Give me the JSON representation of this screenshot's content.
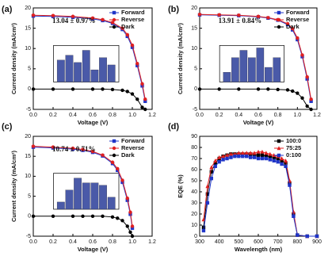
{
  "chart_data": [
    {
      "type": "line",
      "panel": "(a)",
      "annotation": "13.04 ± 0.97%",
      "x_label": "Voltage (V)",
      "y_label": "Current density (mA/cm²)",
      "x": [
        0,
        0.2,
        0.4,
        0.6,
        0.7,
        0.8,
        0.9,
        0.95,
        1.0,
        1.05,
        1.1,
        1.13
      ],
      "series": [
        {
          "name": "Forward",
          "color": "#1f35c8",
          "marker": "square",
          "values": [
            18.0,
            17.9,
            17.7,
            17.3,
            16.9,
            16.2,
            14.7,
            13.0,
            10.3,
            5.8,
            0.8,
            -3
          ]
        },
        {
          "name": "Reverse",
          "color": "#e02020",
          "marker": "circle",
          "values": [
            18.2,
            18.1,
            17.9,
            17.5,
            17.1,
            16.4,
            15.0,
            13.4,
            10.8,
            6.3,
            1.3,
            -2.5
          ]
        },
        {
          "name": "Dark",
          "color": "#000000",
          "marker": "circle",
          "values": [
            0,
            0,
            0,
            0,
            0,
            -0.1,
            -0.3,
            -0.6,
            -1.2,
            -2.5,
            -4.5,
            -5
          ]
        }
      ],
      "xlim": [
        0,
        1.2
      ],
      "xticks": [
        {
          "value": 0,
          "label": "0.0"
        },
        {
          "value": 0.2,
          "label": "0.2"
        },
        {
          "value": 0.4,
          "label": "0.4"
        },
        {
          "value": 0.6,
          "label": "0.6"
        },
        {
          "value": 0.8,
          "label": "0.8"
        },
        {
          "value": 1.0,
          "label": "1.0"
        },
        {
          "value": 1.2,
          "label": "1.2"
        }
      ],
      "ylim": [
        -5,
        20
      ],
      "yticks": [
        -5,
        0,
        5,
        10,
        15,
        20
      ],
      "inset": {
        "values": [
          9,
          11,
          8,
          13,
          5,
          10,
          7
        ],
        "color": "#4a5aa8",
        "ylim": [
          0,
          15
        ]
      }
    },
    {
      "type": "line",
      "panel": "(b)",
      "annotation": "13.91 ± 0.84%",
      "x_label": "Voltage (V)",
      "y_label": "Current density (mA/cm²)",
      "x": [
        0,
        0.2,
        0.4,
        0.6,
        0.7,
        0.8,
        0.9,
        0.95,
        1.0,
        1.05,
        1.1,
        1.14
      ],
      "series": [
        {
          "name": "Forward",
          "color": "#1f35c8",
          "marker": "square",
          "values": [
            18.3,
            18.2,
            18.1,
            17.8,
            17.5,
            17.0,
            15.9,
            14.6,
            12.2,
            8.0,
            2.5,
            -3
          ]
        },
        {
          "name": "Reverse",
          "color": "#e02020",
          "marker": "circle",
          "values": [
            18.4,
            18.3,
            18.2,
            17.9,
            17.6,
            17.1,
            16.1,
            14.9,
            12.6,
            8.4,
            3.0,
            -2.5
          ]
        },
        {
          "name": "Dark",
          "color": "#000000",
          "marker": "circle",
          "values": [
            0,
            0,
            0,
            0,
            0,
            -0.1,
            -0.2,
            -0.5,
            -1.0,
            -2.2,
            -4.2,
            -5
          ]
        }
      ],
      "xlim": [
        0,
        1.2
      ],
      "xticks": [
        {
          "value": 0,
          "label": "0.0"
        },
        {
          "value": 0.2,
          "label": "0.2"
        },
        {
          "value": 0.4,
          "label": "0.4"
        },
        {
          "value": 0.6,
          "label": "0.6"
        },
        {
          "value": 0.8,
          "label": "0.8"
        },
        {
          "value": 1.0,
          "label": "1.0"
        },
        {
          "value": 1.2,
          "label": "1.2"
        }
      ],
      "ylim": [
        -5,
        20
      ],
      "yticks": [
        -5,
        0,
        5,
        10,
        15,
        20
      ],
      "inset": {
        "values": [
          4,
          10,
          13,
          10,
          14,
          6,
          10
        ],
        "color": "#4a5aa8",
        "ylim": [
          0,
          15
        ]
      }
    },
    {
      "type": "line",
      "panel": "(c)",
      "annotation": "10.74 ± 0.71%",
      "x_label": "Voltage (V)",
      "y_label": "Current density (mA/cm²)",
      "x": [
        0,
        0.2,
        0.4,
        0.5,
        0.6,
        0.7,
        0.8,
        0.85,
        0.9,
        0.95,
        0.98,
        1.0
      ],
      "series": [
        {
          "name": "Forward",
          "color": "#1f35c8",
          "marker": "square",
          "values": [
            17.3,
            17.1,
            16.8,
            16.5,
            16.0,
            15.1,
            13.2,
            11.5,
            8.5,
            4.0,
            0.5,
            -3
          ]
        },
        {
          "name": "Reverse",
          "color": "#e02020",
          "marker": "circle",
          "values": [
            17.5,
            17.3,
            17.0,
            16.7,
            16.2,
            15.3,
            13.5,
            11.9,
            9.0,
            4.5,
            1.0,
            -2.5
          ]
        },
        {
          "name": "Dark",
          "color": "#000000",
          "marker": "circle",
          "values": [
            0,
            0,
            0,
            0,
            0,
            0,
            -0.2,
            -0.5,
            -1.1,
            -2.5,
            -4,
            -5
          ]
        }
      ],
      "xlim": [
        0,
        1.2
      ],
      "xticks": [
        {
          "value": 0,
          "label": "0.0"
        },
        {
          "value": 0.2,
          "label": "0.2"
        },
        {
          "value": 0.4,
          "label": "0.4"
        },
        {
          "value": 0.6,
          "label": "0.6"
        },
        {
          "value": 0.8,
          "label": "0.8"
        },
        {
          "value": 1.0,
          "label": "1.0"
        },
        {
          "value": 1.2,
          "label": "1.2"
        }
      ],
      "ylim": [
        -5,
        20
      ],
      "yticks": [
        -5,
        0,
        5,
        10,
        15,
        20
      ],
      "inset": {
        "values": [
          3,
          8,
          13,
          11,
          11,
          10,
          5
        ],
        "color": "#4a5aa8",
        "ylim": [
          0,
          15
        ]
      }
    },
    {
      "type": "line",
      "panel": "(d)",
      "x_label": "Wavelength (nm)",
      "y_label": "EQE (%)",
      "x": [
        320,
        340,
        360,
        380,
        400,
        420,
        440,
        460,
        480,
        500,
        520,
        540,
        560,
        580,
        600,
        620,
        640,
        660,
        680,
        700,
        720,
        740,
        760,
        780,
        800,
        850,
        900
      ],
      "series": [
        {
          "name": "100:0",
          "color": "#000000",
          "marker": "square",
          "values": [
            8,
            38,
            58,
            66,
            70,
            72,
            73,
            74,
            74,
            74,
            74,
            74,
            74,
            73,
            73,
            73,
            72,
            72,
            71,
            70,
            68,
            66,
            48,
            20,
            1,
            0,
            0
          ]
        },
        {
          "name": "75:25",
          "color": "#e02020",
          "marker": "triangle",
          "values": [
            15,
            45,
            62,
            68,
            71,
            72,
            73,
            74,
            74,
            75,
            75,
            75,
            75,
            75,
            76,
            76,
            75,
            74,
            73,
            72,
            70,
            68,
            50,
            22,
            1,
            0,
            0
          ]
        },
        {
          "name": "0:100",
          "color": "#1f35c8",
          "marker": "square",
          "values": [
            5,
            30,
            52,
            63,
            67,
            69,
            70,
            71,
            72,
            72,
            72,
            72,
            71,
            71,
            70,
            70,
            70,
            69,
            68,
            67,
            65,
            63,
            46,
            18,
            1,
            0,
            0
          ]
        }
      ],
      "xlim": [
        300,
        900
      ],
      "xticks": [
        300,
        400,
        500,
        600,
        700,
        800,
        900
      ],
      "ylim": [
        0,
        90
      ],
      "yticks": [
        0,
        10,
        20,
        30,
        40,
        50,
        60,
        70,
        80,
        90
      ]
    }
  ]
}
